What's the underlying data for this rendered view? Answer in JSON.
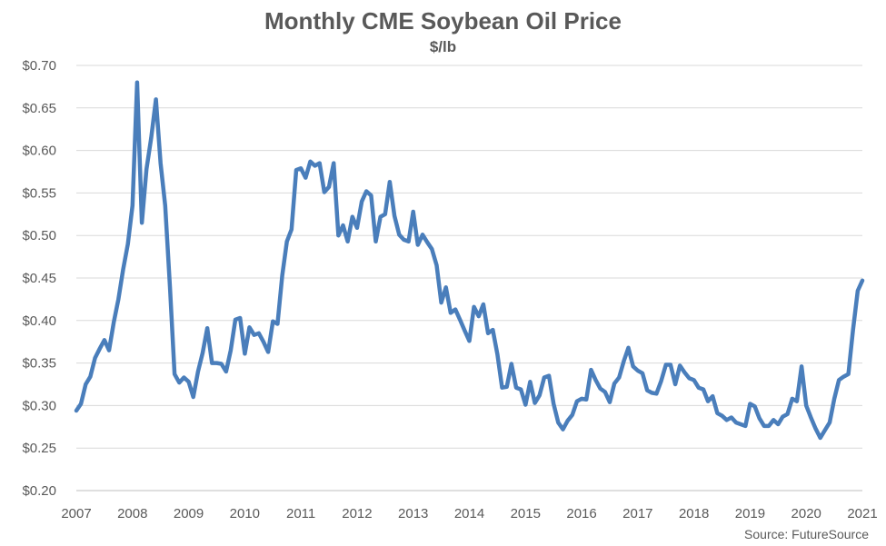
{
  "chart_data": {
    "type": "line",
    "title": "Monthly CME Soybean Oil Price",
    "subtitle": "$/lb",
    "source": "Source: FutureSource",
    "ylim": [
      0.2,
      0.7
    ],
    "yticks": [
      "$0.20",
      "$0.25",
      "$0.30",
      "$0.35",
      "$0.40",
      "$0.45",
      "$0.50",
      "$0.55",
      "$0.60",
      "$0.65",
      "$0.70"
    ],
    "xlim": [
      2007,
      2021
    ],
    "xticks": [
      "2007",
      "2008",
      "2009",
      "2010",
      "2011",
      "2012",
      "2013",
      "2014",
      "2015",
      "2016",
      "2017",
      "2018",
      "2019",
      "2020",
      "2021"
    ],
    "grid": "horizontal",
    "line_color": "#4a7ebb",
    "series": [
      {
        "x": [
          2007.0,
          2007.083,
          2007.167,
          2007.25,
          2007.333,
          2007.417,
          2007.5,
          2007.583,
          2007.667,
          2007.75,
          2007.833,
          2007.917,
          2008.0,
          2008.083,
          2008.167,
          2008.25,
          2008.333,
          2008.417,
          2008.5,
          2008.583,
          2008.667,
          2008.75,
          2008.833,
          2008.917,
          2009.0,
          2009.083,
          2009.167,
          2009.25,
          2009.333,
          2009.417,
          2009.5,
          2009.583,
          2009.667,
          2009.75,
          2009.833,
          2009.917,
          2010.0,
          2010.083,
          2010.167,
          2010.25,
          2010.333,
          2010.417,
          2010.5,
          2010.583,
          2010.667,
          2010.75,
          2010.833,
          2010.917,
          2011.0,
          2011.083,
          2011.167,
          2011.25,
          2011.333,
          2011.417,
          2011.5,
          2011.583,
          2011.667,
          2011.75,
          2011.833,
          2011.917,
          2012.0,
          2012.083,
          2012.167,
          2012.25,
          2012.333,
          2012.417,
          2012.5,
          2012.583,
          2012.667,
          2012.75,
          2012.833,
          2012.917,
          2013.0,
          2013.083,
          2013.167,
          2013.25,
          2013.333,
          2013.417,
          2013.5,
          2013.583,
          2013.667,
          2013.75,
          2013.833,
          2013.917,
          2014.0,
          2014.083,
          2014.167,
          2014.25,
          2014.333,
          2014.417,
          2014.5,
          2014.583,
          2014.667,
          2014.75,
          2014.833,
          2014.917,
          2015.0,
          2015.083,
          2015.167,
          2015.25,
          2015.333,
          2015.417,
          2015.5,
          2015.583,
          2015.667,
          2015.75,
          2015.833,
          2015.917,
          2016.0,
          2016.083,
          2016.167,
          2016.25,
          2016.333,
          2016.417,
          2016.5,
          2016.583,
          2016.667,
          2016.75,
          2016.833,
          2016.917,
          2017.0,
          2017.083,
          2017.167,
          2017.25,
          2017.333,
          2017.417,
          2017.5,
          2017.583,
          2017.667,
          2017.75,
          2017.833,
          2017.917,
          2018.0,
          2018.083,
          2018.167,
          2018.25,
          2018.333,
          2018.417,
          2018.5,
          2018.583,
          2018.667,
          2018.75,
          2018.833,
          2018.917,
          2019.0,
          2019.083,
          2019.167,
          2019.25,
          2019.333,
          2019.417,
          2019.5,
          2019.583,
          2019.667,
          2019.75,
          2019.833,
          2019.917,
          2020.0,
          2020.083,
          2020.167,
          2020.25,
          2020.333,
          2020.417,
          2020.5,
          2020.583,
          2020.667,
          2020.75,
          2020.833,
          2020.917,
          2021.0
        ],
        "y": [
          0.294,
          0.302,
          0.325,
          0.334,
          0.356,
          0.367,
          0.377,
          0.365,
          0.398,
          0.425,
          0.46,
          0.49,
          0.535,
          0.68,
          0.515,
          0.578,
          0.615,
          0.66,
          0.585,
          0.535,
          0.44,
          0.337,
          0.327,
          0.333,
          0.328,
          0.31,
          0.34,
          0.362,
          0.391,
          0.35,
          0.35,
          0.349,
          0.34,
          0.365,
          0.401,
          0.403,
          0.361,
          0.392,
          0.383,
          0.385,
          0.375,
          0.363,
          0.399,
          0.396,
          0.453,
          0.493,
          0.507,
          0.577,
          0.579,
          0.568,
          0.587,
          0.582,
          0.585,
          0.551,
          0.557,
          0.585,
          0.5,
          0.512,
          0.493,
          0.522,
          0.509,
          0.54,
          0.552,
          0.547,
          0.493,
          0.522,
          0.525,
          0.563,
          0.523,
          0.501,
          0.495,
          0.493,
          0.528,
          0.489,
          0.501,
          0.492,
          0.484,
          0.465,
          0.421,
          0.439,
          0.409,
          0.413,
          0.401,
          0.388,
          0.376,
          0.416,
          0.405,
          0.419,
          0.385,
          0.389,
          0.36,
          0.321,
          0.322,
          0.349,
          0.321,
          0.319,
          0.301,
          0.328,
          0.303,
          0.312,
          0.333,
          0.335,
          0.302,
          0.28,
          0.272,
          0.282,
          0.289,
          0.305,
          0.308,
          0.307,
          0.342,
          0.33,
          0.32,
          0.316,
          0.304,
          0.326,
          0.333,
          0.352,
          0.368,
          0.346,
          0.341,
          0.338,
          0.318,
          0.315,
          0.314,
          0.329,
          0.348,
          0.348,
          0.325,
          0.347,
          0.339,
          0.332,
          0.33,
          0.321,
          0.319,
          0.305,
          0.311,
          0.291,
          0.288,
          0.283,
          0.286,
          0.28,
          0.278,
          0.276,
          0.302,
          0.299,
          0.285,
          0.276,
          0.276,
          0.283,
          0.278,
          0.287,
          0.29,
          0.308,
          0.305,
          0.346,
          0.3,
          0.286,
          0.273,
          0.262,
          0.271,
          0.28,
          0.308,
          0.33,
          0.334,
          0.337,
          0.389,
          0.435,
          0.447
        ]
      }
    ]
  }
}
